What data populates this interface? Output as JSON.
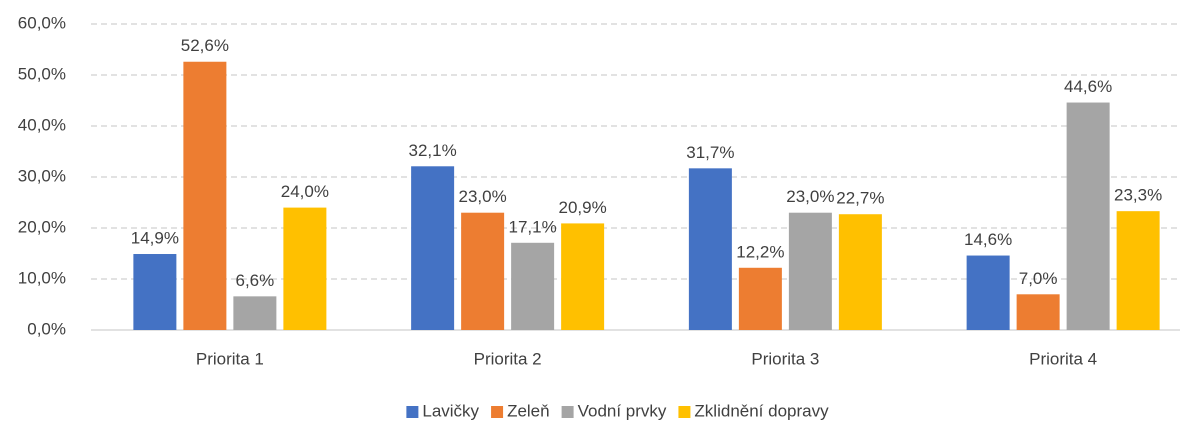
{
  "chart_data": {
    "type": "bar",
    "categories": [
      "Priorita 1",
      "Priorita 2",
      "Priorita 3",
      "Priorita 4"
    ],
    "series": [
      {
        "name": "Lavičky",
        "color": "#4472c4",
        "values": [
          14.9,
          32.1,
          31.7,
          14.6
        ],
        "value_labels": [
          "14,9%",
          "32,1%",
          "31,7%",
          "14,6%"
        ]
      },
      {
        "name": "Zeleň",
        "color": "#ed7d31",
        "values": [
          52.6,
          23.0,
          12.2,
          7.0
        ],
        "value_labels": [
          "52,6%",
          "23,0%",
          "12,2%",
          "7,0%"
        ]
      },
      {
        "name": "Vodní prvky",
        "color": "#a5a5a5",
        "values": [
          6.6,
          17.1,
          23.0,
          44.6
        ],
        "value_labels": [
          "6,6%",
          "17,1%",
          "23,0%",
          "44,6%"
        ]
      },
      {
        "name": "Zklidnění dopravy",
        "color": "#ffc000",
        "values": [
          24.0,
          20.9,
          22.7,
          23.3
        ],
        "value_labels": [
          "24,0%",
          "20,9%",
          "22,7%",
          "23,3%"
        ]
      }
    ],
    "ylim": [
      0,
      60
    ],
    "yticks": [
      {
        "value": 0,
        "label": "0,0%"
      },
      {
        "value": 10,
        "label": "10,0%"
      },
      {
        "value": 20,
        "label": "20,0%"
      },
      {
        "value": 30,
        "label": "30,0%"
      },
      {
        "value": 40,
        "label": "40,0%"
      },
      {
        "value": 50,
        "label": "50,0%"
      },
      {
        "value": 60,
        "label": "60,0%"
      }
    ],
    "grid": true,
    "legend": "bottom"
  }
}
